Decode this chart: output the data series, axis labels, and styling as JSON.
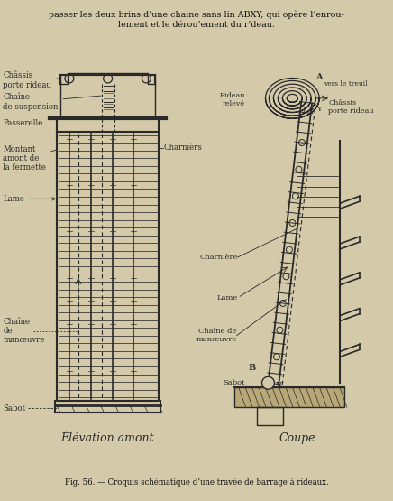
{
  "bg_color": "#d4c9a8",
  "text_color": "#1a1a1a",
  "line_color": "#2a2a2a",
  "title_text": "Fig. 56. — Croquis schématique d’une travée de barrage à rideaux.",
  "header_line1": "passer les deux brins d’une chaine sans lin ABXY, qui opère l’enrou-",
  "header_line2": "lement et le dérou’ement du r’deau.",
  "left_caption": "Élévation amont",
  "right_caption": "Coupe",
  "fig_width": 4.36,
  "fig_height": 5.55
}
